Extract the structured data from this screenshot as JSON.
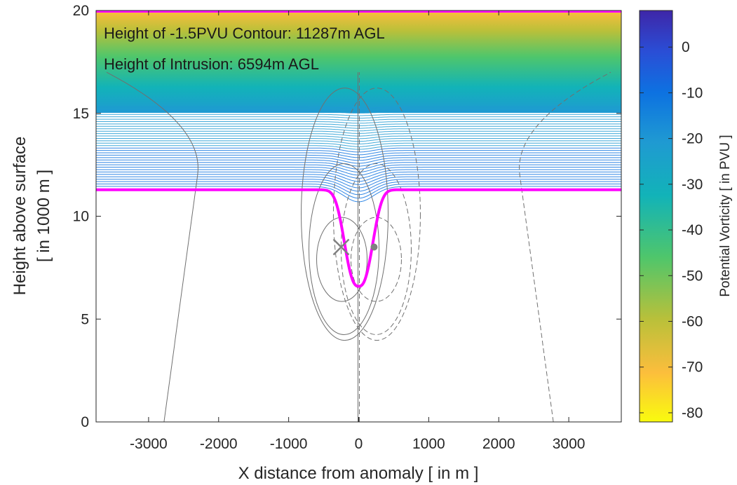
{
  "chart_data": {
    "type": "line",
    "xlabel": "X distance from anomaly [ in m ]",
    "ylabel_lines": [
      "Height above surface",
      "[ in 1000 m ]"
    ],
    "xlim": [
      -3750,
      3750
    ],
    "ylim": [
      0,
      20
    ],
    "x_ticks": [
      -3000,
      -2000,
      -1000,
      0,
      1000,
      2000,
      3000
    ],
    "x_tick_labels": [
      "-3000",
      "-2000",
      "-1000",
      "0",
      "1000",
      "2000",
      "3000"
    ],
    "y_ticks": [
      0,
      5,
      10,
      15,
      20
    ],
    "y_tick_labels": [
      "0",
      "5",
      "10",
      "15",
      "20"
    ],
    "grid": false,
    "annotations": [
      "Height of -1.5PVU Contour: 11287m AGL",
      "Height of Intrusion: 6594m AGL"
    ],
    "highlight_contour": {
      "label": "-1.5PVU",
      "color": "#ff00ff",
      "base_height_km": 11.287,
      "intrusion_height_km": 6.594,
      "intrusion_halfwidth_m": 190,
      "top_height_km": 20
    },
    "markers": [
      {
        "symbol": "x",
        "x": -250,
        "y": 8.5,
        "color": "#808080"
      },
      {
        "symbol": "dot",
        "x": 220,
        "y": 8.5,
        "color": "#808080"
      }
    ],
    "colorbar": {
      "label": "Potential Vorticity [ in PVU ]",
      "range": [
        -82,
        8
      ],
      "ticks": [
        0,
        -10,
        -20,
        -30,
        -40,
        -50,
        -60,
        -70,
        -80
      ],
      "tick_labels": [
        "0",
        "-10",
        "-20",
        "-30",
        "-40",
        "-50",
        "-60",
        "-70",
        "-80"
      ],
      "colors": [
        "#f9fb0e",
        "#fcbe3c",
        "#b9c03a",
        "#4fc66b",
        "#12b3b8",
        "#1f9ad2",
        "#0d72e1",
        "#2a4ed6",
        "#3e26a8"
      ]
    }
  }
}
